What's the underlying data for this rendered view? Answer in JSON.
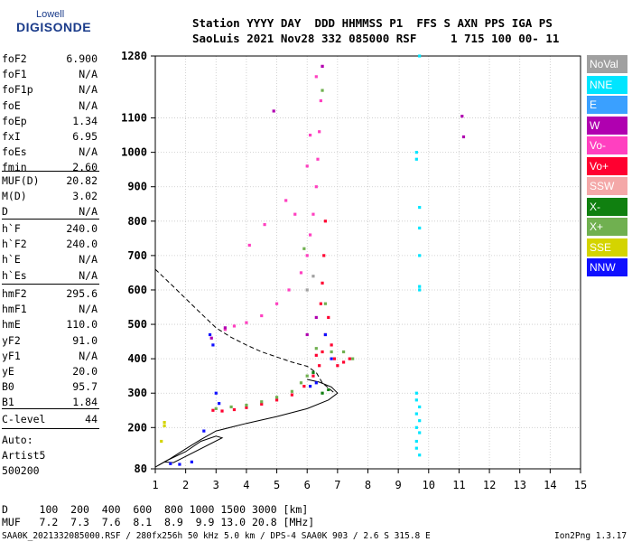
{
  "logo": {
    "top": "Lowell",
    "main": "DIGISONDE"
  },
  "header": {
    "line1": "Station YYYY DAY  DDD HHMMSS P1  FFS S AXN PPS IGA PS",
    "line2": "SaoLuis 2021 Nov28 332 085000 RSF     1 715 100 00- 11"
  },
  "params_group1": [
    {
      "name": "foF2",
      "value": "6.900"
    },
    {
      "name": "foF1",
      "value": "N/A"
    },
    {
      "name": "foF1p",
      "value": "N/A"
    },
    {
      "name": "foE",
      "value": "N/A"
    },
    {
      "name": "foEp",
      "value": "1.34"
    },
    {
      "name": "fxI",
      "value": "6.95"
    },
    {
      "name": "foEs",
      "value": "N/A"
    },
    {
      "name": "fmin",
      "value": "2.60"
    }
  ],
  "params_group2": [
    {
      "name": "MUF(D)",
      "value": "20.82"
    },
    {
      "name": "M(D)",
      "value": "3.02"
    },
    {
      "name": "D",
      "value": "N/A"
    }
  ],
  "params_group3": [
    {
      "name": "h`F",
      "value": "240.0"
    },
    {
      "name": "h`F2",
      "value": "240.0"
    },
    {
      "name": "h`E",
      "value": "N/A"
    },
    {
      "name": "h`Es",
      "value": "N/A"
    }
  ],
  "params_group4": [
    {
      "name": "hmF2",
      "value": "295.6"
    },
    {
      "name": "hmF1",
      "value": "N/A"
    },
    {
      "name": "hmE",
      "value": "110.0"
    },
    {
      "name": "yF2",
      "value": "91.0"
    },
    {
      "name": "yF1",
      "value": "N/A"
    },
    {
      "name": "yE",
      "value": "20.0"
    },
    {
      "name": "B0",
      "value": "95.7"
    },
    {
      "name": "B1",
      "value": "1.84"
    }
  ],
  "clevel": {
    "name": "C-level",
    "value": "44"
  },
  "autoscale": [
    "Auto:",
    "Artist5",
    "500200"
  ],
  "legend": [
    {
      "label": "NoVal",
      "color": "#a0a0a0"
    },
    {
      "label": "NNE",
      "color": "#00e5ff"
    },
    {
      "label": "E",
      "color": "#3aa0ff"
    },
    {
      "label": "W",
      "color": "#b000b0"
    },
    {
      "label": "Vo-",
      "color": "#ff40c0"
    },
    {
      "label": "Vo+",
      "color": "#ff0030"
    },
    {
      "label": "SSW",
      "color": "#f4a8a8"
    },
    {
      "label": "X-",
      "color": "#108010"
    },
    {
      "label": "X+",
      "color": "#70b050"
    },
    {
      "label": "SSE",
      "color": "#d4d400"
    },
    {
      "label": "NNW",
      "color": "#1010ff"
    }
  ],
  "footer": {
    "d_line": "D     100  200  400  600  800 1000 1500 3000 [km]",
    "muf_line": "MUF   7.2  7.3  7.6  8.1  8.9  9.9 13.0 20.8 [MHz]",
    "file_line": "SAA0K_2021332085000.RSF / 280fx256h 50 kHz 5.0 km / DPS-4 SAA0K 903 / 2.6 S 315.8 E",
    "version": "Ion2Png 1.3.17"
  },
  "chart_data": {
    "type": "scatter",
    "xlim": [
      1,
      15
    ],
    "ylim": [
      80,
      1280
    ],
    "x_ticks": [
      1,
      2,
      3,
      4,
      5,
      6,
      7,
      8,
      9,
      10,
      11,
      12,
      13,
      14,
      15
    ],
    "y_ticks": [
      80,
      200,
      300,
      400,
      500,
      600,
      700,
      800,
      900,
      1000,
      1100,
      1280
    ],
    "grid": true,
    "legend_placement": "right",
    "series": [
      {
        "name": "Vo+",
        "color": "#ff0030",
        "points": [
          [
            2.9,
            250
          ],
          [
            3.2,
            248
          ],
          [
            3.6,
            252
          ],
          [
            4.0,
            258
          ],
          [
            4.5,
            268
          ],
          [
            5.0,
            280
          ],
          [
            5.5,
            295
          ],
          [
            5.9,
            320
          ],
          [
            6.2,
            350
          ],
          [
            6.4,
            380
          ],
          [
            6.5,
            420
          ],
          [
            6.6,
            470
          ],
          [
            6.7,
            520
          ],
          [
            6.8,
            440
          ],
          [
            6.9,
            400
          ],
          [
            7.0,
            380
          ],
          [
            7.2,
            390
          ],
          [
            7.4,
            400
          ],
          [
            6.3,
            410
          ],
          [
            6.45,
            560
          ],
          [
            6.5,
            620
          ],
          [
            6.55,
            700
          ],
          [
            6.6,
            800
          ]
        ]
      },
      {
        "name": "Vo-",
        "color": "#ff40c0",
        "points": [
          [
            3.3,
            485
          ],
          [
            3.6,
            495
          ],
          [
            4.0,
            505
          ],
          [
            4.5,
            525
          ],
          [
            5.0,
            560
          ],
          [
            5.4,
            600
          ],
          [
            5.8,
            650
          ],
          [
            6.0,
            700
          ],
          [
            6.1,
            760
          ],
          [
            6.2,
            820
          ],
          [
            6.3,
            900
          ],
          [
            6.35,
            980
          ],
          [
            6.4,
            1060
          ],
          [
            6.45,
            1150
          ],
          [
            6.5,
            1250
          ],
          [
            5.6,
            820
          ],
          [
            5.3,
            860
          ],
          [
            4.6,
            790
          ],
          [
            4.1,
            730
          ],
          [
            6.3,
            1220
          ],
          [
            6.1,
            1050
          ],
          [
            6.0,
            960
          ]
        ]
      },
      {
        "name": "X+",
        "color": "#70b050",
        "points": [
          [
            3.0,
            255
          ],
          [
            3.5,
            260
          ],
          [
            4.0,
            265
          ],
          [
            4.5,
            275
          ],
          [
            5.0,
            288
          ],
          [
            5.5,
            305
          ],
          [
            5.8,
            330
          ],
          [
            6.0,
            350
          ],
          [
            6.3,
            430
          ],
          [
            6.6,
            560
          ],
          [
            6.8,
            420
          ],
          [
            7.2,
            420
          ],
          [
            7.5,
            400
          ],
          [
            5.9,
            720
          ],
          [
            6.5,
            1180
          ]
        ]
      },
      {
        "name": "X-",
        "color": "#108010",
        "points": [
          [
            6.2,
            360
          ],
          [
            6.5,
            300
          ],
          [
            6.7,
            310
          ]
        ]
      },
      {
        "name": "NNW",
        "color": "#1010ff",
        "points": [
          [
            1.5,
            95
          ],
          [
            1.8,
            93
          ],
          [
            2.2,
            100
          ],
          [
            2.6,
            190
          ],
          [
            2.8,
            470
          ],
          [
            2.9,
            440
          ],
          [
            3.0,
            300
          ],
          [
            3.1,
            270
          ],
          [
            6.1,
            320
          ],
          [
            6.3,
            330
          ],
          [
            6.6,
            470
          ],
          [
            6.8,
            400
          ]
        ]
      },
      {
        "name": "W",
        "color": "#b000b0",
        "points": [
          [
            2.85,
            460
          ],
          [
            3.3,
            490
          ],
          [
            4.9,
            1120
          ],
          [
            6.0,
            470
          ],
          [
            6.3,
            520
          ],
          [
            11.1,
            1105
          ],
          [
            11.15,
            1045
          ],
          [
            6.5,
            1250
          ]
        ]
      },
      {
        "name": "NNE",
        "color": "#00e5ff",
        "points": [
          [
            9.6,
            1000
          ],
          [
            9.6,
            980
          ],
          [
            9.7,
            840
          ],
          [
            9.7,
            780
          ],
          [
            9.7,
            700
          ],
          [
            9.7,
            610
          ],
          [
            9.7,
            600
          ],
          [
            9.6,
            300
          ],
          [
            9.6,
            280
          ],
          [
            9.7,
            260
          ],
          [
            9.6,
            240
          ],
          [
            9.7,
            220
          ],
          [
            9.6,
            200
          ],
          [
            9.7,
            185
          ],
          [
            9.6,
            160
          ],
          [
            9.6,
            140
          ],
          [
            9.7,
            120
          ],
          [
            9.7,
            1280
          ]
        ]
      },
      {
        "name": "SSE",
        "color": "#d4d400",
        "points": [
          [
            1.3,
            205
          ],
          [
            1.3,
            215
          ],
          [
            1.2,
            160
          ]
        ]
      },
      {
        "name": "NoVal",
        "color": "#a0a0a0",
        "points": [
          [
            6.0,
            600
          ],
          [
            6.2,
            640
          ]
        ]
      }
    ],
    "profile_solid": [
      [
        1,
        85
      ],
      [
        1.5,
        110
      ],
      [
        2.0,
        138
      ],
      [
        2.5,
        165
      ],
      [
        3.0,
        190
      ],
      [
        4.0,
        212
      ],
      [
        5.0,
        232
      ],
      [
        6.0,
        255
      ],
      [
        6.7,
        280
      ],
      [
        7.0,
        300
      ],
      [
        6.8,
        318
      ],
      [
        6.4,
        332
      ],
      [
        6.1,
        338
      ],
      [
        6.0,
        340
      ]
    ],
    "profile_dashed": [
      [
        1,
        660
      ],
      [
        1.5,
        618
      ],
      [
        2.0,
        575
      ],
      [
        2.5,
        532
      ],
      [
        3.0,
        490
      ],
      [
        3.5,
        462
      ],
      [
        4.0,
        440
      ],
      [
        4.5,
        420
      ],
      [
        5.0,
        405
      ],
      [
        5.5,
        390
      ],
      [
        6.0,
        378
      ],
      [
        6.3,
        360
      ],
      [
        6.5,
        330
      ],
      [
        6.9,
        300
      ]
    ],
    "lower_trace": [
      [
        1.1,
        90
      ],
      [
        1.4,
        105
      ],
      [
        2.0,
        130
      ],
      [
        2.5,
        160
      ],
      [
        3.0,
        175
      ],
      [
        3.2,
        170
      ],
      [
        1.6,
        98
      ],
      [
        1.3,
        100
      ]
    ]
  }
}
